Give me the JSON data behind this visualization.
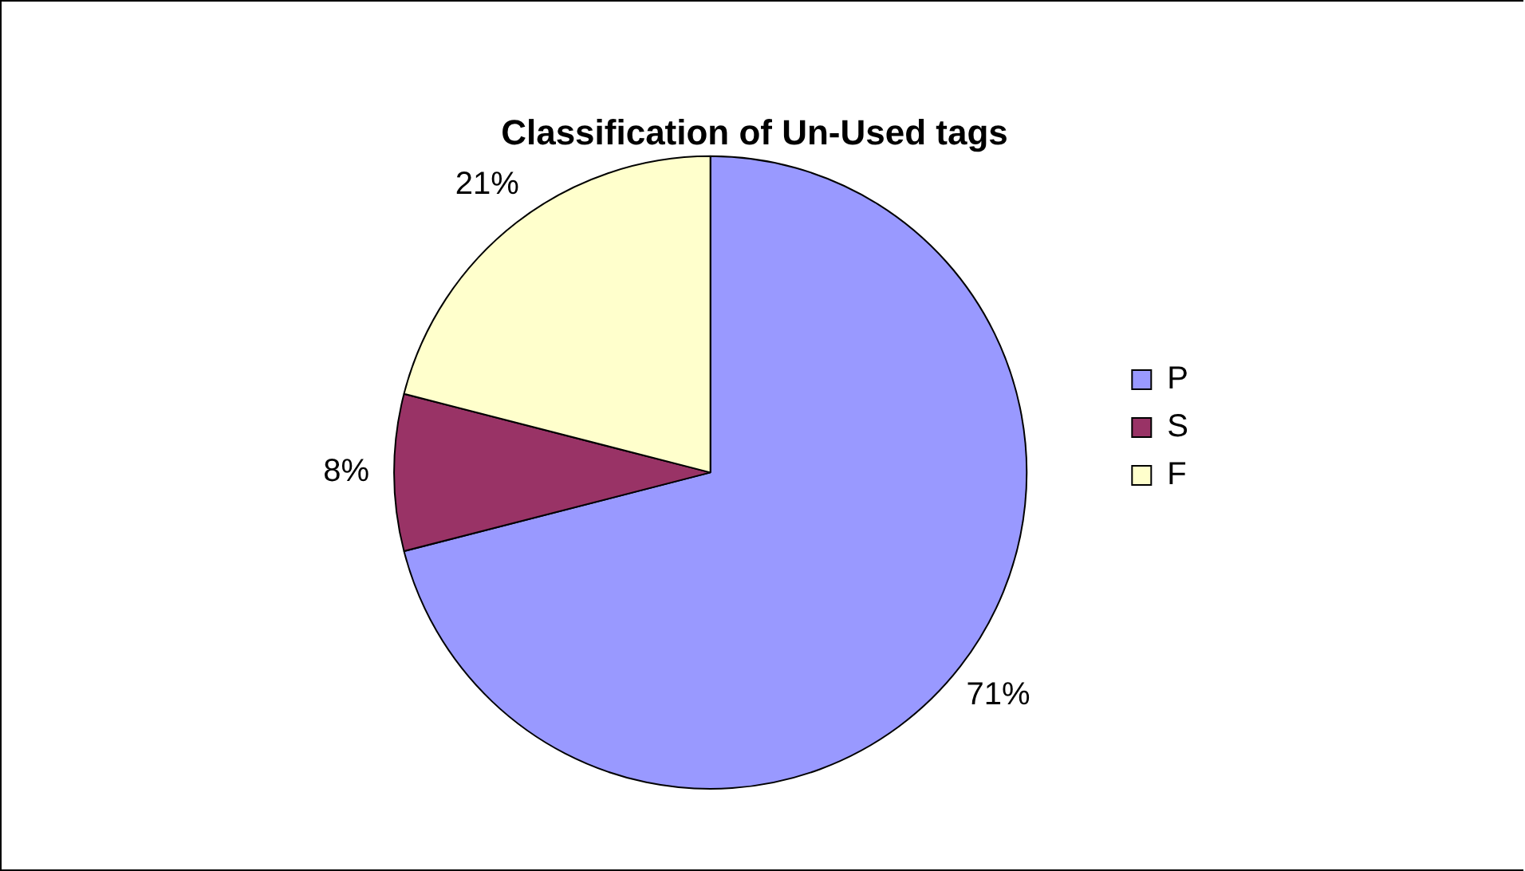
{
  "chart_data": {
    "type": "pie",
    "title": "Classification of Un-Used tags",
    "categories": [
      "P",
      "S",
      "F"
    ],
    "values": [
      71,
      8,
      21
    ],
    "colors": [
      "#9999ff",
      "#993366",
      "#ffffcc"
    ],
    "value_labels": [
      "71%",
      "8%",
      "21%"
    ],
    "legend": "right"
  }
}
